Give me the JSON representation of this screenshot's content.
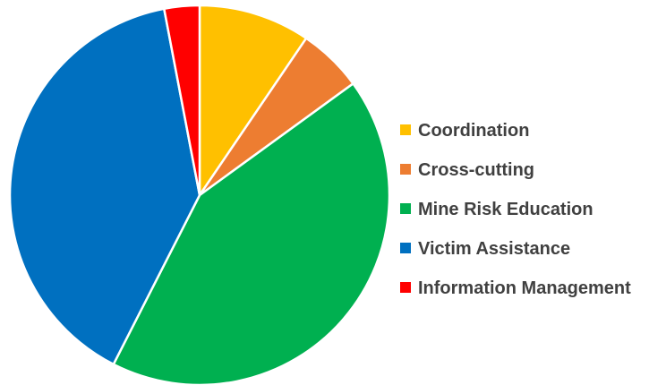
{
  "chart_data": {
    "type": "pie",
    "title": "",
    "legend_position": "right",
    "slices": [
      {
        "label": "Coordination",
        "value": 9.5,
        "color": "#FFC000"
      },
      {
        "label": "Cross-cutting",
        "value": 5.5,
        "color": "#ED7D31"
      },
      {
        "label": "Mine Risk Education",
        "value": 42.5,
        "color": "#00B050"
      },
      {
        "label": "Victim Assistance",
        "value": 39.5,
        "color": "#0070C0"
      },
      {
        "label": "Information Management",
        "value": 3.0,
        "color": "#FF0000"
      }
    ]
  }
}
